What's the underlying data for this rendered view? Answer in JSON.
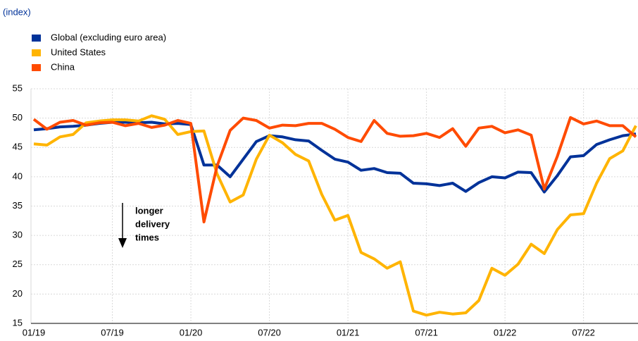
{
  "chart_data": {
    "type": "line",
    "y_label": "(index)",
    "annotation": [
      "longer",
      "delivery",
      "times"
    ],
    "categories": [
      "01/19",
      null,
      null,
      null,
      null,
      null,
      "07/19",
      null,
      null,
      null,
      null,
      null,
      "01/20",
      null,
      null,
      null,
      null,
      null,
      "07/20",
      null,
      null,
      null,
      null,
      null,
      "01/21",
      null,
      null,
      null,
      null,
      null,
      "07/21",
      null,
      null,
      null,
      null,
      null,
      "01/22",
      null,
      null,
      null,
      null,
      null,
      "07/22",
      null,
      null,
      null,
      null
    ],
    "series": [
      {
        "name": "Global (excluding euro area)",
        "color": "#003299",
        "values": [
          48,
          48.2,
          48.5,
          48.6,
          48.8,
          49.1,
          49.3,
          49.3,
          49.2,
          49.3,
          49,
          49.1,
          48.9,
          42,
          42,
          40,
          43,
          46,
          47,
          46.8,
          46.3,
          46.1,
          44.5,
          43,
          42.5,
          41.1,
          41.4,
          40.7,
          40.6,
          38.9,
          38.8,
          38.5,
          38.9,
          37.5,
          39,
          40,
          39.8,
          40.8,
          40.7,
          37.4,
          40.2,
          43.4,
          43.6,
          45.5,
          46.3,
          47,
          47.3
        ]
      },
      {
        "name": "United States",
        "color": "#ffb400",
        "values": [
          45.6,
          45.4,
          46.8,
          47.2,
          49.2,
          49.5,
          49.7,
          49.7,
          49.5,
          50.4,
          49.8,
          47.2,
          47.7,
          47.8,
          40.5,
          35.7,
          36.9,
          43,
          47.1,
          45.8,
          43.8,
          42.7,
          37,
          32.6,
          33.4,
          27.1,
          26,
          24.4,
          25.5,
          17.1,
          16.4,
          16.9,
          16.6,
          16.8,
          18.9,
          24.4,
          23.2,
          25.1,
          28.5,
          26.9,
          31,
          33.5,
          33.7,
          38.9,
          43.1,
          44.4,
          48.7
        ]
      },
      {
        "name": "China",
        "color": "#ff4b00",
        "values": [
          49.8,
          48.1,
          49.3,
          49.6,
          48.8,
          49.2,
          49.3,
          48.7,
          49.1,
          48.4,
          48.8,
          49.6,
          49.1,
          32.3,
          41.8,
          47.9,
          50,
          49.6,
          48.3,
          48.8,
          48.7,
          49.1,
          49.1,
          48.1,
          46.7,
          46,
          49.6,
          47.4,
          46.9,
          47,
          47.4,
          46.7,
          48.2,
          45.2,
          48.3,
          48.6,
          47.5,
          48,
          47.1,
          37.9,
          43.5,
          50.1,
          49,
          49.5,
          48.7,
          48.7,
          46.8
        ]
      }
    ],
    "ylim": [
      15,
      55
    ],
    "yticks": [
      15,
      20,
      25,
      30,
      35,
      40,
      45,
      50,
      55
    ],
    "grid": true
  }
}
